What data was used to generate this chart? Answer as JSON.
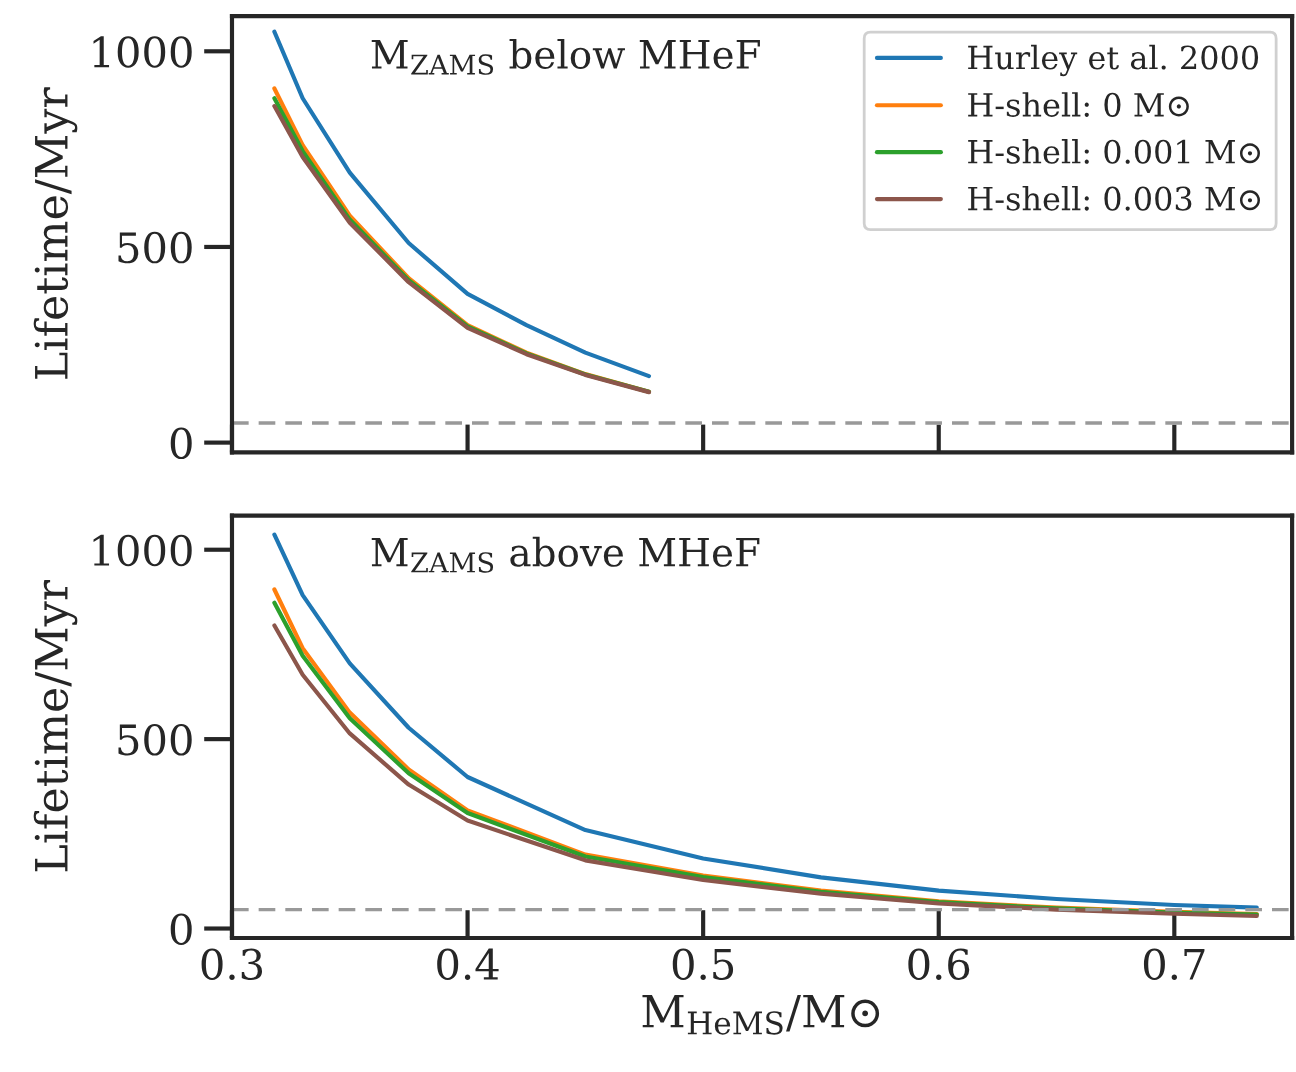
{
  "chart_data": [
    {
      "type": "line",
      "ylabel": "Lifetime/Myr",
      "annotations": [
        "M$_{ZAMS}$ below MHeF"
      ],
      "xlim": [
        0.3,
        0.75
      ],
      "xticks": [
        0.3,
        0.4,
        0.5,
        0.6,
        0.7
      ],
      "ylim": [
        -25,
        1090
      ],
      "yticks": [
        0,
        500,
        1000
      ],
      "tick_labels": "y",
      "legend": "top right",
      "grid": false,
      "ref_lines": [
        {
          "axis": "y",
          "value": 50,
          "color": "#999999",
          "line_style": "dashed"
        }
      ],
      "series": [
        {
          "name": "Hurley et al. 2000",
          "color": "#1f77b4",
          "x": [
            0.318,
            0.33,
            0.35,
            0.375,
            0.4,
            0.425,
            0.45,
            0.477
          ],
          "values": [
            1050,
            880,
            690,
            510,
            380,
            300,
            230,
            170
          ]
        },
        {
          "name": "H-shell: 0 M⊙",
          "color": "#ff7f0e",
          "x": [
            0.318,
            0.33,
            0.35,
            0.375,
            0.4,
            0.425,
            0.45,
            0.477
          ],
          "values": [
            905,
            760,
            580,
            420,
            300,
            230,
            175,
            130
          ]
        },
        {
          "name": "H-shell: 0.001 M⊙",
          "color": "#2ca02c",
          "x": [
            0.318,
            0.33,
            0.35,
            0.375,
            0.4,
            0.425,
            0.45,
            0.477
          ],
          "values": [
            880,
            745,
            570,
            415,
            297,
            228,
            174,
            130
          ]
        },
        {
          "name": "H-shell: 0.003 M⊙",
          "color": "#8c564b",
          "x": [
            0.318,
            0.33,
            0.35,
            0.375,
            0.4,
            0.425,
            0.45,
            0.477
          ],
          "values": [
            860,
            730,
            562,
            410,
            293,
            226,
            173,
            129
          ]
        }
      ]
    },
    {
      "type": "line",
      "ylabel": "Lifetime/Myr",
      "xlabel": "M$_{HeMS}$/M⊙",
      "annotations": [
        "M$_{ZAMS}$ above MHeF"
      ],
      "xlim": [
        0.3,
        0.75
      ],
      "xticks": [
        0.3,
        0.4,
        0.5,
        0.6,
        0.7
      ],
      "ylim": [
        -25,
        1090
      ],
      "yticks": [
        0,
        500,
        1000
      ],
      "legend": false,
      "grid": false,
      "ref_lines": [
        {
          "axis": "y",
          "value": 50,
          "color": "#999999",
          "line_style": "dashed"
        }
      ],
      "series": [
        {
          "color": "#1f77b4",
          "x": [
            0.318,
            0.33,
            0.35,
            0.375,
            0.4,
            0.45,
            0.5,
            0.55,
            0.6,
            0.65,
            0.7,
            0.735
          ],
          "values": [
            1040,
            880,
            700,
            530,
            400,
            260,
            185,
            135,
            100,
            78,
            62,
            55
          ]
        },
        {
          "color": "#ff7f0e",
          "x": [
            0.318,
            0.33,
            0.35,
            0.375,
            0.4,
            0.45,
            0.5,
            0.55,
            0.6,
            0.65,
            0.7,
            0.735
          ],
          "values": [
            895,
            740,
            570,
            420,
            312,
            195,
            140,
            100,
            72,
            55,
            44,
            38
          ]
        },
        {
          "color": "#2ca02c",
          "x": [
            0.318,
            0.33,
            0.35,
            0.375,
            0.4,
            0.45,
            0.5,
            0.55,
            0.6,
            0.65,
            0.7,
            0.735
          ],
          "values": [
            860,
            720,
            555,
            410,
            305,
            190,
            136,
            97,
            70,
            53,
            42,
            37
          ]
        },
        {
          "color": "#8c564b",
          "x": [
            0.318,
            0.33,
            0.35,
            0.375,
            0.4,
            0.45,
            0.5,
            0.55,
            0.6,
            0.65,
            0.7,
            0.735
          ],
          "values": [
            800,
            670,
            515,
            380,
            285,
            180,
            128,
            92,
            66,
            50,
            39,
            33
          ]
        }
      ]
    }
  ]
}
